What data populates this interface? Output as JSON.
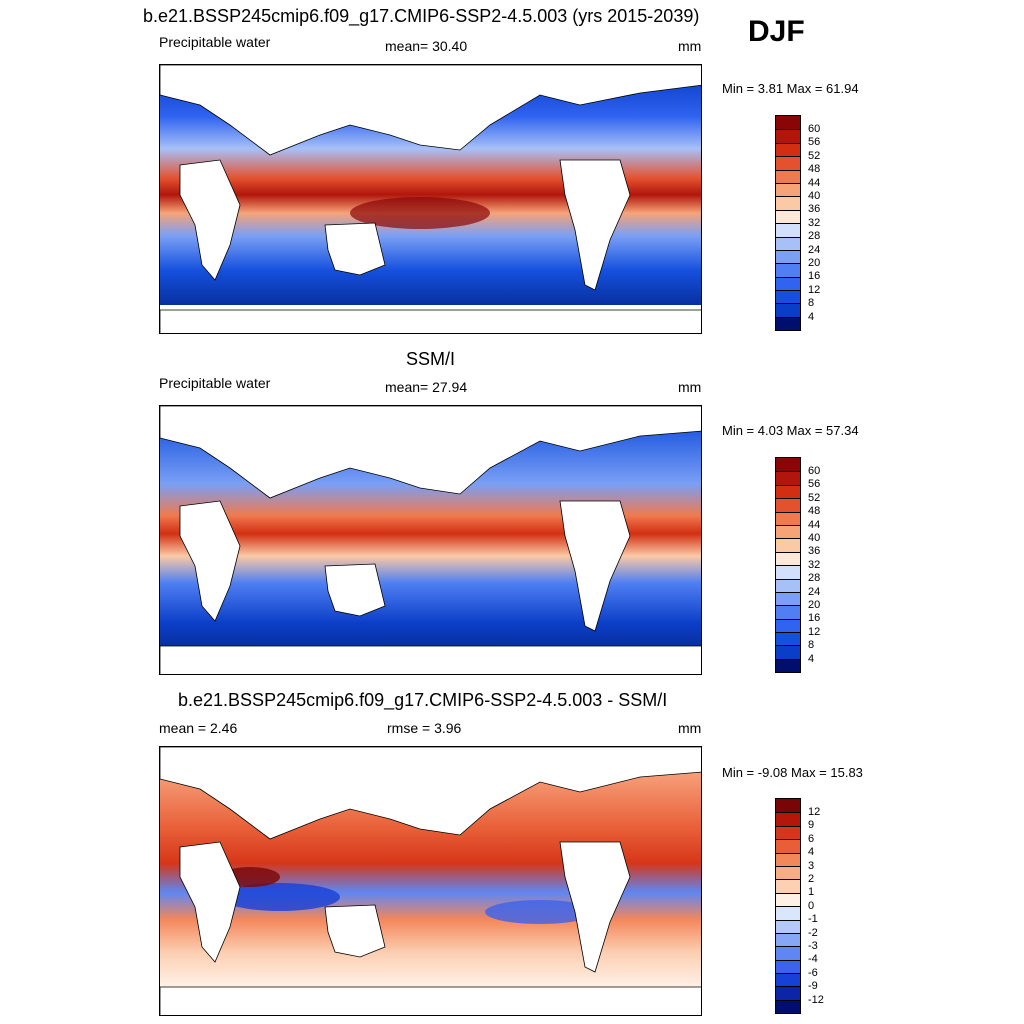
{
  "djf_label": "DJF",
  "palette_full": [
    "#0b1f9a",
    "#08309f",
    "#0b3ec8",
    "#1550de",
    "#2f63f0",
    "#4f7ff2",
    "#7a9ff5",
    "#a7c0f8",
    "#d2e0fb",
    "#fde7d8",
    "#fbc9a6",
    "#f7a378",
    "#f07a4f",
    "#e4512e",
    "#d22f12",
    "#b0160c",
    "#8a0505"
  ],
  "palette_diff": [
    "#000e6e",
    "#0c25a8",
    "#1640d6",
    "#3a63ee",
    "#5f86f2",
    "#87a6f5",
    "#b3c9f8",
    "#dae6fb",
    "#fff0e6",
    "#fcd0b3",
    "#f9ac86",
    "#f3875c",
    "#e85e37",
    "#d63619",
    "#b4160a",
    "#7a0505"
  ],
  "panels": [
    {
      "title": "b.e21.BSSP245cmip6.f09_g17.CMIP6-SSP2-4.5.003 (yrs 2015-2039)",
      "left_text": "Precipitable water",
      "center_text": "mean=  30.40",
      "units": "mm",
      "minmax": "Min =   3.81 Max =  61.94",
      "levels": [
        "60",
        "56",
        "52",
        "48",
        "44",
        "40",
        "36",
        "32",
        "28",
        "24",
        "20",
        "16",
        "12",
        "8",
        "4"
      ]
    },
    {
      "title": "SSM/I",
      "left_text": "Precipitable water",
      "center_text": "mean=  27.94",
      "units": "mm",
      "minmax": "Min =   4.03 Max =  57.34",
      "levels": [
        "60",
        "56",
        "52",
        "48",
        "44",
        "40",
        "36",
        "32",
        "28",
        "24",
        "20",
        "16",
        "12",
        "8",
        "4"
      ]
    },
    {
      "title": "b.e21.BSSP245cmip6.f09_g17.CMIP6-SSP2-4.5.003 - SSM/I",
      "left_text": "mean =   2.46",
      "center_text": "rmse =   3.96",
      "units": "mm",
      "minmax": "Min =  -9.08 Max =  15.83",
      "levels": [
        "12",
        "9",
        "6",
        "4",
        "3",
        "2",
        "1",
        "0",
        "-1",
        "-2",
        "-3",
        "-4",
        "-6",
        "-9",
        "-12"
      ]
    }
  ]
}
